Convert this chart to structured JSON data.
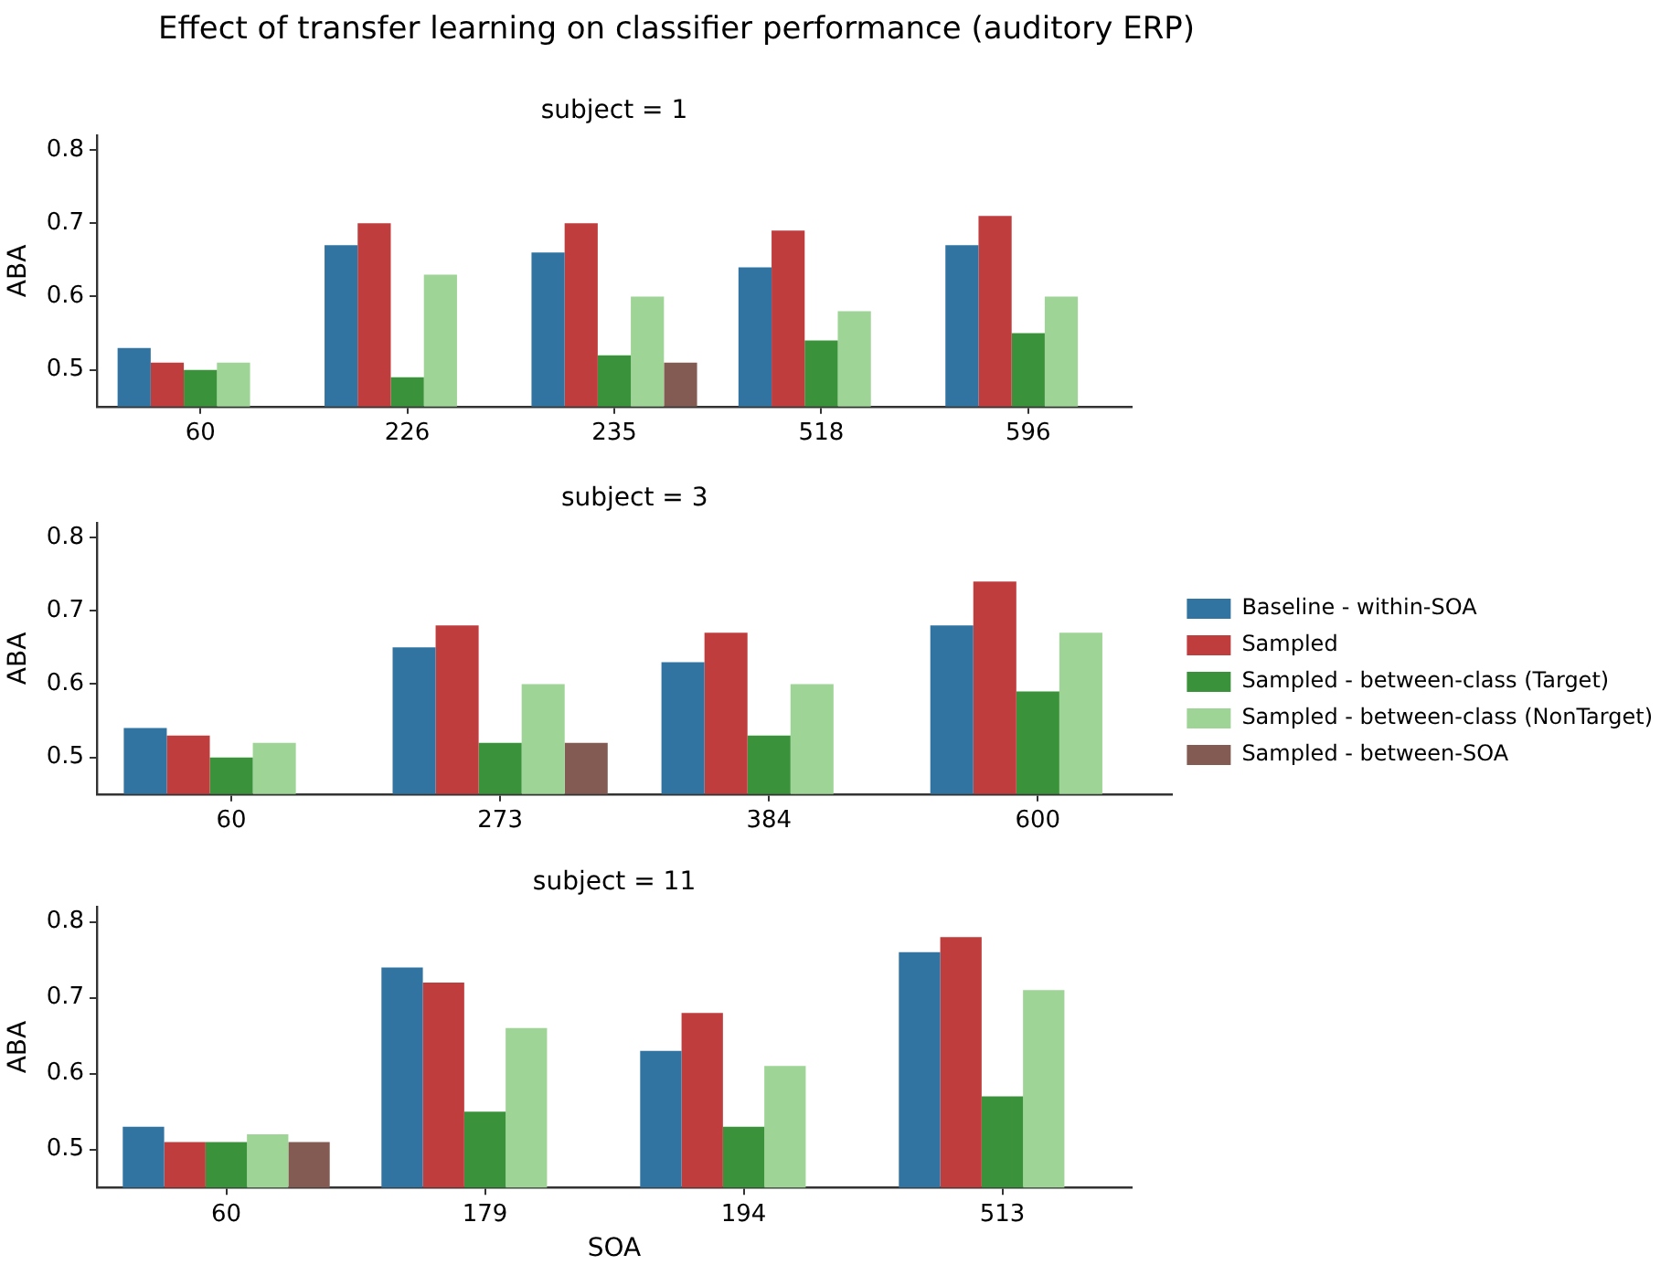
{
  "chart_data": [
    {
      "type": "bar",
      "title": "Effect of transfer learning on classifier performance (auditory ERP)",
      "subtitle": "subject = 1",
      "ylabel": "ABA",
      "categories": [
        "60",
        "226",
        "235",
        "518",
        "596"
      ],
      "ylim": [
        0.45,
        0.82
      ],
      "yticks": [
        0.5,
        0.6,
        0.7,
        0.8
      ],
      "legend": false,
      "series": [
        {
          "color": "#3274a1",
          "values": [
            0.53,
            0.67,
            0.66,
            0.64,
            0.67
          ]
        },
        {
          "color": "#c03d3e",
          "values": [
            0.51,
            0.7,
            0.7,
            0.69,
            0.71
          ]
        },
        {
          "color": "#3a923a",
          "values": [
            0.5,
            0.49,
            0.52,
            0.54,
            0.55
          ]
        },
        {
          "color": "#9ed495",
          "values": [
            0.51,
            0.63,
            0.6,
            0.58,
            0.6
          ]
        },
        {
          "color": "#845b53",
          "values": [
            null,
            null,
            0.51,
            null,
            null
          ]
        }
      ]
    },
    {
      "type": "bar",
      "subtitle": "subject = 3",
      "ylabel": "ABA",
      "categories": [
        "60",
        "273",
        "384",
        "600"
      ],
      "ylim": [
        0.45,
        0.82
      ],
      "yticks": [
        0.5,
        0.6,
        0.7,
        0.8
      ],
      "legend": "right",
      "series": [
        {
          "name": "Baseline - within-SOA",
          "color": "#3274a1",
          "values": [
            0.54,
            0.65,
            0.63,
            0.68
          ]
        },
        {
          "name": "Sampled",
          "color": "#c03d3e",
          "values": [
            0.53,
            0.68,
            0.67,
            0.74
          ]
        },
        {
          "name": "Sampled - between-class (Target)",
          "color": "#3a923a",
          "values": [
            0.5,
            0.52,
            0.53,
            0.59
          ]
        },
        {
          "name": "Sampled - between-class (NonTarget)",
          "color": "#9ed495",
          "values": [
            0.52,
            0.6,
            0.6,
            0.67
          ]
        },
        {
          "name": "Sampled - between-SOA",
          "color": "#845b53",
          "values": [
            null,
            0.52,
            null,
            null
          ]
        }
      ]
    },
    {
      "type": "bar",
      "subtitle": "subject = 11",
      "xlabel": "SOA",
      "ylabel": "ABA",
      "categories": [
        "60",
        "179",
        "194",
        "513"
      ],
      "ylim": [
        0.45,
        0.82
      ],
      "yticks": [
        0.5,
        0.6,
        0.7,
        0.8
      ],
      "legend": false,
      "series": [
        {
          "color": "#3274a1",
          "values": [
            0.53,
            0.74,
            0.63,
            0.76
          ]
        },
        {
          "color": "#c03d3e",
          "values": [
            0.51,
            0.72,
            0.68,
            0.78
          ]
        },
        {
          "color": "#3a923a",
          "values": [
            0.51,
            0.55,
            0.53,
            0.57
          ]
        },
        {
          "color": "#9ed495",
          "values": [
            0.52,
            0.66,
            0.61,
            0.71
          ]
        },
        {
          "color": "#845b53",
          "values": [
            0.51,
            null,
            null,
            null
          ]
        }
      ]
    }
  ]
}
